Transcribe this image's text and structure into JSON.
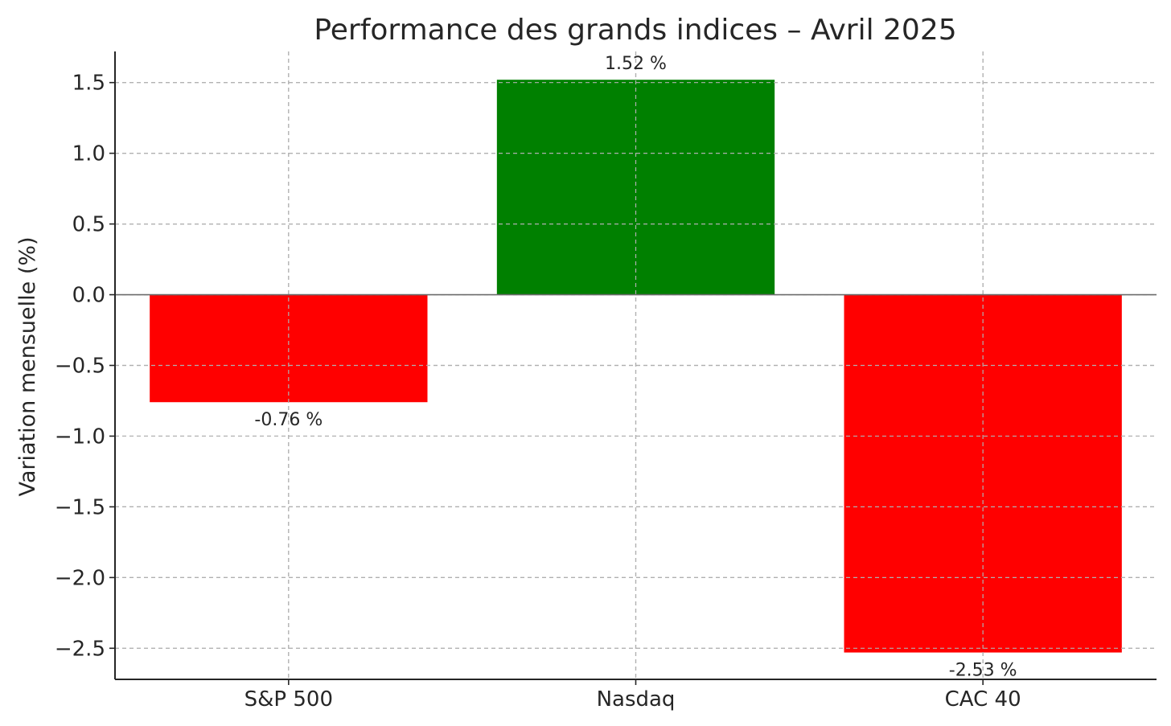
{
  "chart_data": {
    "type": "bar",
    "title": "Performance des grands indices – Avril 2025",
    "xlabel": "",
    "ylabel": "Variation mensuelle (%)",
    "categories": [
      "S&P 500",
      "Nasdaq",
      "CAC 40"
    ],
    "values": [
      -0.76,
      1.52,
      -2.53
    ],
    "data_labels": [
      "-0.76 %",
      "1.52 %",
      "-2.53 %"
    ],
    "bar_colors": [
      "#ff0000",
      "#008000",
      "#ff0000"
    ],
    "ylim": [
      -2.72,
      1.72
    ],
    "yticks": [
      1.5,
      1.0,
      0.5,
      0.0,
      -0.5,
      -1.0,
      -1.5,
      -2.0,
      -2.5
    ],
    "ytick_labels": [
      "1.5",
      "1.0",
      "0.5",
      "0.0",
      "−0.5",
      "−1.0",
      "−1.5",
      "−2.0",
      "−2.5"
    ],
    "grid": true,
    "zero_line": true
  }
}
